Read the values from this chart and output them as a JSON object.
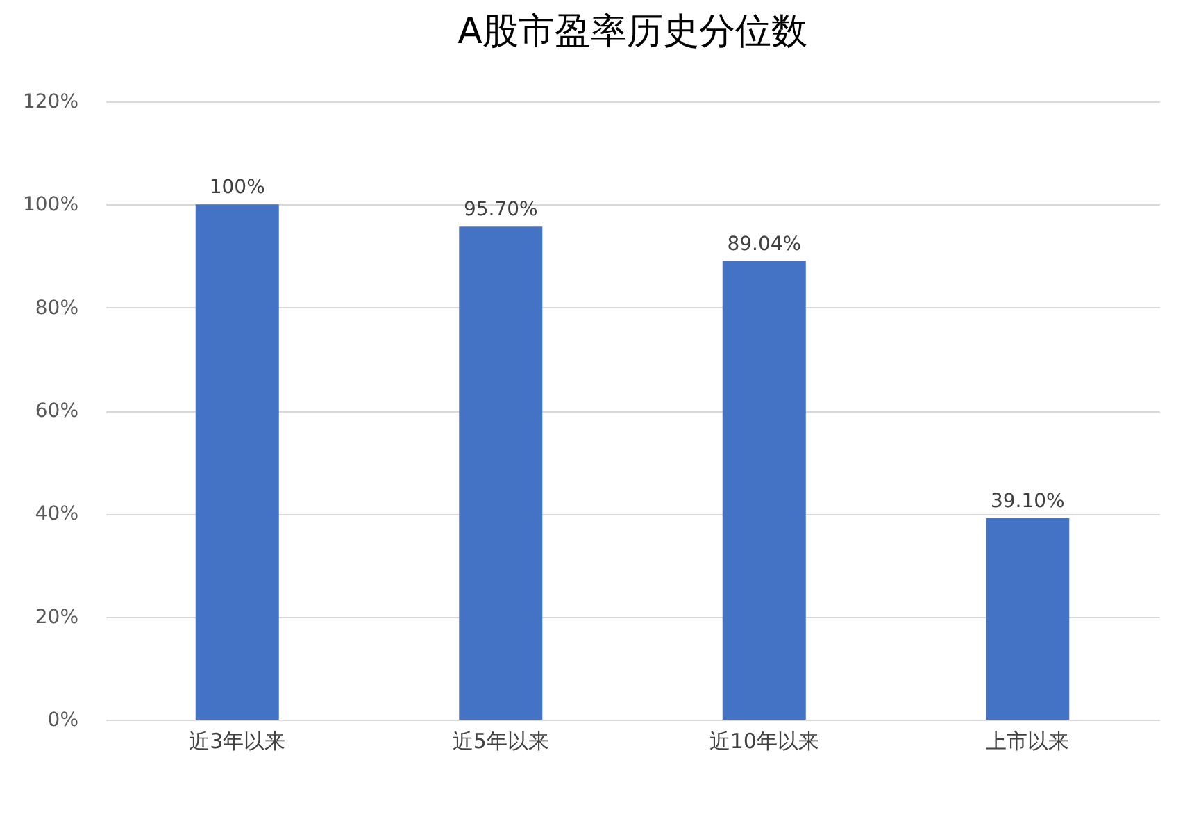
{
  "chart_data": {
    "type": "bar",
    "title": "A股市盈率历史分位数",
    "categories": [
      "近3年以来",
      "近5年以来",
      "近10年以来",
      "上市以来"
    ],
    "values": [
      100,
      95.7,
      89.04,
      39.1
    ],
    "value_labels": [
      "100%",
      "95.70%",
      "89.04%",
      "39.10%"
    ],
    "color": "#4472c4",
    "ylim": [
      0,
      120
    ],
    "yticks": [
      {
        "value": 0,
        "label": "0%"
      },
      {
        "value": 20,
        "label": "20%"
      },
      {
        "value": 40,
        "label": "40%"
      },
      {
        "value": 60,
        "label": "60%"
      },
      {
        "value": 80,
        "label": "80%"
      },
      {
        "value": 100,
        "label": "100%"
      },
      {
        "value": 120,
        "label": "120%"
      }
    ],
    "grid": "y"
  }
}
